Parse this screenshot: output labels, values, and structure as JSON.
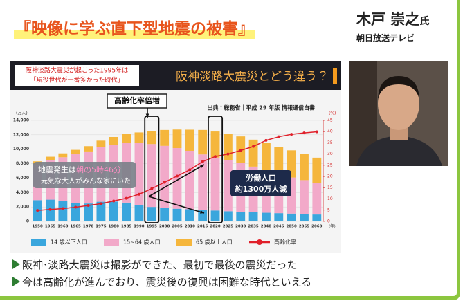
{
  "header": {
    "title": "『映像に学ぶ直下型地震の被害』",
    "speaker": "木戸 崇之",
    "honorific": "氏",
    "affiliation": "朝日放送テレビ"
  },
  "slide": {
    "banner_note": [
      "阪神淡路大震災が起こった1995年は",
      "「現役世代が一番多かった時代」"
    ],
    "banner_title": "阪神淡路大震災とどう違う？",
    "callout_aging": "高齢化率倍増",
    "source": "出典：総務省｜平成 29 年版 情報通信白書",
    "quake_note": [
      "地震発生は",
      "朝の5時46分",
      "元気な大人がみんな家にいた"
    ],
    "labor_note": [
      "労働人口",
      "約1300万人減"
    ]
  },
  "chart_data": {
    "type": "bar",
    "stacked": true,
    "y_unit": "(万人)",
    "y2_unit": "(%)",
    "x_unit": "(年)",
    "categories": [
      "1950",
      "1955",
      "1960",
      "1965",
      "1970",
      "1975",
      "1980",
      "1985",
      "1990",
      "1995",
      "2000",
      "2005",
      "2010",
      "2015",
      "2020",
      "2025",
      "2030",
      "2035",
      "2040",
      "2045",
      "2050",
      "2055",
      "2060"
    ],
    "series": [
      {
        "name": "14 歳以下人口",
        "color": "#3aa6dd",
        "values": [
          2943,
          3012,
          2843,
          2553,
          2482,
          2722,
          2751,
          2603,
          2249,
          2001,
          1847,
          1752,
          1680,
          1595,
          1507,
          1407,
          1321,
          1246,
          1194,
          1138,
          1077,
          1012,
          951
        ]
      },
      {
        "name": "15~64 歳人口",
        "color": "#f2a9c9",
        "values": [
          4966,
          5473,
          6047,
          6744,
          7212,
          7581,
          7884,
          8251,
          8590,
          8716,
          8622,
          8409,
          8103,
          7682,
          7341,
          7084,
          6773,
          6343,
          5787,
          5353,
          5001,
          4706,
          4418
        ]
      },
      {
        "name": "65 歳以上人口",
        "color": "#f5b63c",
        "values": [
          411,
          475,
          535,
          618,
          733,
          887,
          1065,
          1247,
          1489,
          1826,
          2201,
          2567,
          2925,
          3395,
          3612,
          3657,
          3685,
          3741,
          3868,
          3856,
          3768,
          3626,
          3464
        ]
      },
      {
        "name": "高齢化率",
        "color": "#e0202a",
        "type": "line",
        "axis": "y2",
        "values": [
          4.9,
          5.3,
          5.7,
          6.3,
          7.1,
          7.9,
          9.1,
          10.3,
          12.1,
          14.6,
          17.4,
          20.2,
          23.0,
          26.6,
          28.9,
          30.0,
          31.6,
          33.4,
          36.1,
          37.7,
          38.8,
          39.4,
          39.9
        ]
      }
    ],
    "ylim": [
      0,
      14000
    ],
    "yticks": [
      0,
      {
        "value": 2000,
        "label": "2,000"
      },
      {
        "value": 4000,
        "label": "4,000"
      },
      {
        "value": 6000,
        "label": "6,000"
      },
      {
        "value": 8000,
        "label": "8,000"
      },
      {
        "value": 10000,
        "label": "10,000"
      },
      {
        "value": 12000,
        "label": "12,000"
      },
      {
        "value": 14000,
        "label": "14,000"
      }
    ],
    "y2lim": [
      0,
      45
    ],
    "y2ticks": [
      0,
      5,
      10,
      15,
      20,
      25,
      30,
      35,
      40,
      45
    ],
    "legend": "bottom"
  },
  "bullets": [
    "阪神･淡路大震災は撮影ができた、最初で最後の震災だった",
    "今は高齢化が進んでおり、震災後の復興は困難な時代といえる"
  ]
}
